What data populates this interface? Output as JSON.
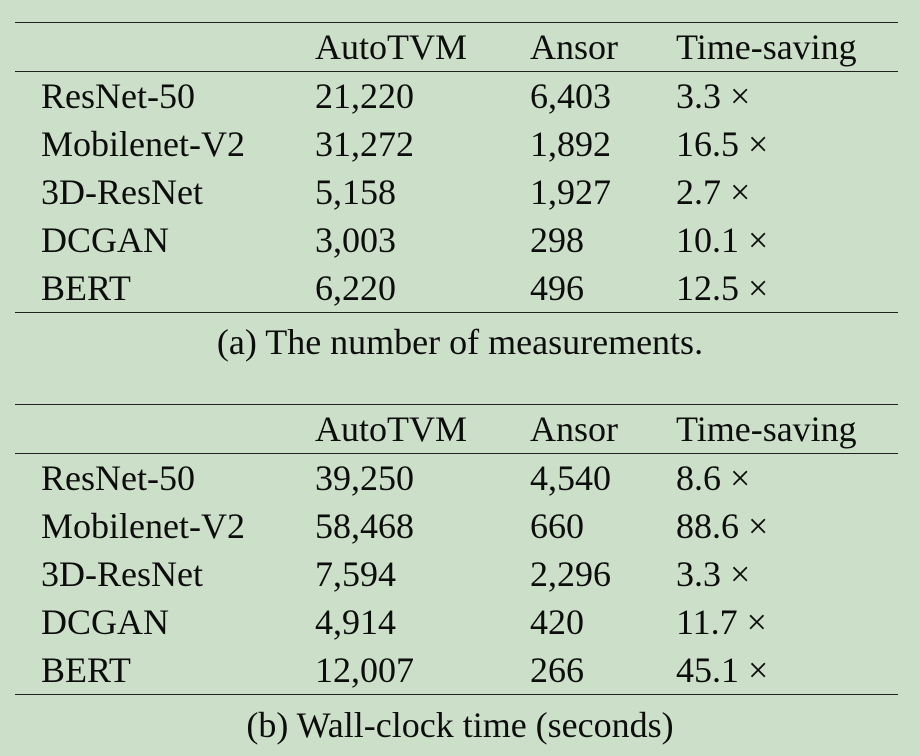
{
  "table_a": {
    "headers": [
      "",
      "AutoTVM",
      "Ansor",
      "Time-saving"
    ],
    "rows": [
      [
        "ResNet-50",
        "21,220",
        "6,403",
        "3.3 ×"
      ],
      [
        "Mobilenet-V2",
        "31,272",
        "1,892",
        "16.5 ×"
      ],
      [
        "3D-ResNet",
        "5,158",
        "1,927",
        "2.7 ×"
      ],
      [
        "DCGAN",
        "3,003",
        "298",
        "10.1 ×"
      ],
      [
        "BERT",
        "6,220",
        "496",
        "12.5 ×"
      ]
    ],
    "caption": "(a) The number of measurements."
  },
  "table_b": {
    "headers": [
      "",
      "AutoTVM",
      "Ansor",
      "Time-saving"
    ],
    "rows": [
      [
        "ResNet-50",
        "39,250",
        "4,540",
        "8.6 ×"
      ],
      [
        "Mobilenet-V2",
        "58,468",
        "660",
        "88.6 ×"
      ],
      [
        "3D-ResNet",
        "7,594",
        "2,296",
        "3.3 ×"
      ],
      [
        "DCGAN",
        "4,914",
        "420",
        "11.7 ×"
      ],
      [
        "BERT",
        "12,007",
        "266",
        "45.1 ×"
      ]
    ],
    "caption": "(b) Wall-clock time (seconds)"
  }
}
